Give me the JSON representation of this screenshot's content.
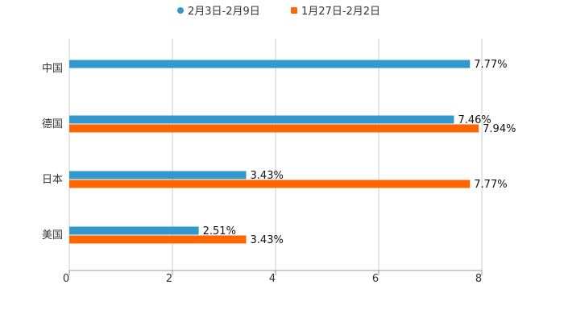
{
  "chart_data": {
    "type": "bar",
    "orientation": "horizontal",
    "title": "",
    "xlabel": "",
    "ylabel": "",
    "categories": [
      "中国",
      "德国",
      "日本",
      "美国"
    ],
    "series": [
      {
        "name": "2月3日-2月9日",
        "color": "#3399cc",
        "values": [
          7.77,
          7.46,
          3.43,
          2.51
        ],
        "labels": [
          "7.77%",
          "7.46%",
          "3.43%",
          "2.51%"
        ]
      },
      {
        "name": "1月27日-2月2日",
        "color": "#ff6600",
        "values": [
          null,
          7.94,
          7.77,
          3.43
        ],
        "labels": [
          "",
          "7.94%",
          "7.77%",
          "3.43%"
        ]
      }
    ],
    "xlim": [
      0,
      8
    ],
    "xticks": [
      0,
      2,
      4,
      6,
      8
    ],
    "xtick_labels": [
      "0",
      "2",
      "4",
      "6",
      "8"
    ],
    "grid": true,
    "legend_position": "top-center"
  }
}
